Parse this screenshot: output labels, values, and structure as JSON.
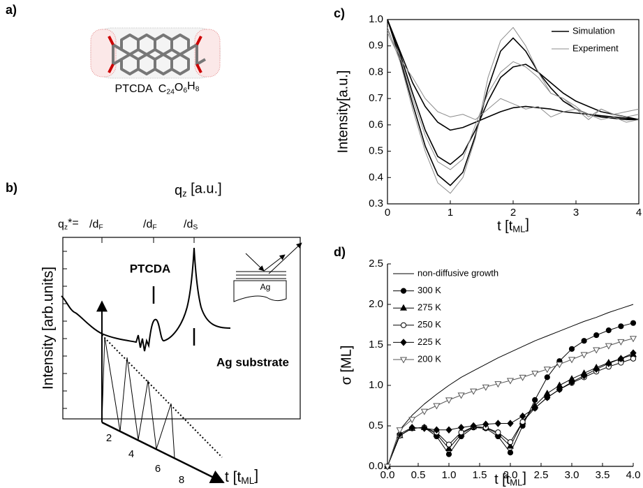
{
  "panel_a": {
    "label": "a)",
    "caption": [
      "PTCDA  C",
      "24",
      "O",
      "6",
      "H",
      "8"
    ]
  },
  "panel_b": {
    "label": "b)",
    "axis_title": [
      "q",
      "z",
      " [a.u.]"
    ],
    "top_labels": [
      [
        "q",
        "z",
        "*= "
      ],
      [
        "/d",
        "F"
      ],
      [
        "/d",
        "F"
      ],
      [
        "/d",
        "S"
      ]
    ],
    "ylabel": "Intensity [arb.units]",
    "peak_label": "PTCDA",
    "substrate_label": "Ag substrate",
    "inset_label": "Ag",
    "t_ticks": [
      2,
      4,
      6,
      8
    ],
    "t_label": [
      "t [t",
      "ML",
      "]"
    ]
  },
  "chart_data": [
    {
      "label": "c)",
      "type": "line",
      "ylabel": "Intensity[a.u.]",
      "xlabel": [
        "t [t",
        "ML",
        "]"
      ],
      "xlim": [
        0,
        4
      ],
      "xticks": [
        0,
        1,
        2,
        3,
        4
      ],
      "ylim": [
        0.3,
        1
      ],
      "yticks": [
        0.3,
        0.4,
        0.5,
        0.6,
        0.7,
        0.8,
        0.9,
        {
          "value": 1,
          "label": "1.0"
        }
      ],
      "legend": "upper right",
      "x": [
        0,
        0.2,
        0.4,
        0.6,
        0.8,
        1,
        1.2,
        1.4,
        1.6,
        1.8,
        2,
        2.2,
        2.4,
        2.6,
        2.8,
        3,
        3.2,
        3.4,
        3.6,
        3.8,
        4
      ],
      "series": [
        {
          "name": "Simulation",
          "color": "#000000",
          "lines": [
            [
              1.0,
              0.85,
              0.68,
              0.52,
              0.41,
              0.37,
              0.42,
              0.56,
              0.74,
              0.88,
              0.93,
              0.88,
              0.8,
              0.74,
              0.69,
              0.66,
              0.64,
              0.63,
              0.625,
              0.62,
              0.62
            ],
            [
              1.0,
              0.87,
              0.72,
              0.58,
              0.48,
              0.45,
              0.49,
              0.58,
              0.69,
              0.78,
              0.82,
              0.83,
              0.8,
              0.76,
              0.72,
              0.69,
              0.67,
              0.65,
              0.64,
              0.63,
              0.62
            ],
            [
              1.0,
              0.88,
              0.76,
              0.67,
              0.61,
              0.58,
              0.59,
              0.61,
              0.63,
              0.65,
              0.665,
              0.67,
              0.665,
              0.66,
              0.65,
              0.645,
              0.64,
              0.635,
              0.63,
              0.625,
              0.62
            ]
          ]
        },
        {
          "name": "Experiment",
          "color": "#8c8c8c",
          "lines": [
            [
              0.97,
              0.84,
              0.66,
              0.5,
              0.38,
              0.34,
              0.4,
              0.55,
              0.78,
              0.92,
              0.97,
              0.9,
              0.8,
              0.72,
              0.7,
              0.66,
              0.64,
              0.62,
              0.63,
              0.61,
              0.62
            ],
            [
              0.96,
              0.86,
              0.7,
              0.56,
              0.46,
              0.43,
              0.47,
              0.6,
              0.72,
              0.8,
              0.84,
              0.82,
              0.78,
              0.72,
              0.7,
              0.67,
              0.63,
              0.66,
              0.64,
              0.63,
              0.64
            ],
            [
              0.95,
              0.85,
              0.78,
              0.7,
              0.65,
              0.63,
              0.64,
              0.62,
              0.66,
              0.7,
              0.68,
              0.66,
              0.67,
              0.63,
              0.65,
              0.66,
              0.62,
              0.66,
              0.64,
              0.65,
              0.66
            ]
          ]
        }
      ]
    },
    {
      "label": "d)",
      "type": "line",
      "ylabel": "σ [ML]",
      "xlabel": [
        "t [t",
        "ML",
        "]"
      ],
      "xlim": [
        0,
        4
      ],
      "xticks": [
        {
          "value": 0,
          "label": "0.0"
        },
        0.5,
        {
          "value": 1,
          "label": "1.0"
        },
        1.5,
        {
          "value": 2,
          "label": "2.0"
        },
        2.5,
        {
          "value": 3,
          "label": "3.0"
        },
        3.5,
        {
          "value": 4,
          "label": "4.0"
        }
      ],
      "ylim": [
        0,
        2.5
      ],
      "yticks": [
        {
          "value": 0,
          "label": "0.0"
        },
        0.5,
        {
          "value": 1,
          "label": "1.0"
        },
        1.5,
        {
          "value": 2,
          "label": "2.0"
        },
        2.5
      ],
      "legend": "upper left",
      "x": [
        0,
        0.2,
        0.4,
        0.6,
        0.8,
        1,
        1.2,
        1.4,
        1.6,
        1.8,
        2,
        2.2,
        2.4,
        2.6,
        2.8,
        3,
        3.2,
        3.4,
        3.6,
        3.8,
        4
      ],
      "series": [
        {
          "name": "non-diffusive growth",
          "color": "#000000",
          "marker": "none",
          "filled": true,
          "values": [
            0,
            0.45,
            0.63,
            0.77,
            0.89,
            1.0,
            1.1,
            1.18,
            1.26,
            1.34,
            1.41,
            1.48,
            1.55,
            1.61,
            1.67,
            1.73,
            1.79,
            1.84,
            1.9,
            1.95,
            2.0
          ]
        },
        {
          "name": "300 K",
          "color": "#000000",
          "marker": "circle",
          "filled": true,
          "values": [
            0,
            0.38,
            0.47,
            0.48,
            0.37,
            0.15,
            0.37,
            0.48,
            0.47,
            0.37,
            0.17,
            0.5,
            0.82,
            1.1,
            1.3,
            1.45,
            1.55,
            1.62,
            1.68,
            1.73,
            1.77
          ]
        },
        {
          "name": "275 K",
          "color": "#000000",
          "marker": "triangle",
          "filled": true,
          "values": [
            0,
            0.38,
            0.47,
            0.48,
            0.4,
            0.22,
            0.4,
            0.49,
            0.48,
            0.4,
            0.25,
            0.55,
            0.75,
            0.9,
            1.0,
            1.08,
            1.15,
            1.22,
            1.28,
            1.33,
            1.38
          ]
        },
        {
          "name": "250 K",
          "color": "#000000",
          "marker": "circle",
          "filled": false,
          "values": [
            0,
            0.38,
            0.47,
            0.48,
            0.42,
            0.27,
            0.42,
            0.49,
            0.48,
            0.42,
            0.3,
            0.55,
            0.72,
            0.85,
            0.95,
            1.03,
            1.1,
            1.17,
            1.23,
            1.28,
            1.33
          ]
        },
        {
          "name": "225 K",
          "color": "#000000",
          "marker": "diamond",
          "filled": true,
          "values": [
            0,
            0.4,
            0.48,
            0.47,
            0.45,
            0.45,
            0.48,
            0.5,
            0.52,
            0.53,
            0.53,
            0.62,
            0.72,
            0.85,
            0.95,
            1.04,
            1.12,
            1.2,
            1.27,
            1.33,
            1.4
          ]
        },
        {
          "name": "200 K",
          "color": "#555555",
          "marker": "triangle-down",
          "filled": false,
          "values": [
            0,
            0.45,
            0.58,
            0.68,
            0.75,
            0.82,
            0.88,
            0.93,
            0.98,
            1.02,
            1.06,
            1.1,
            1.15,
            1.2,
            1.26,
            1.32,
            1.38,
            1.44,
            1.49,
            1.54,
            1.58
          ]
        }
      ]
    }
  ]
}
